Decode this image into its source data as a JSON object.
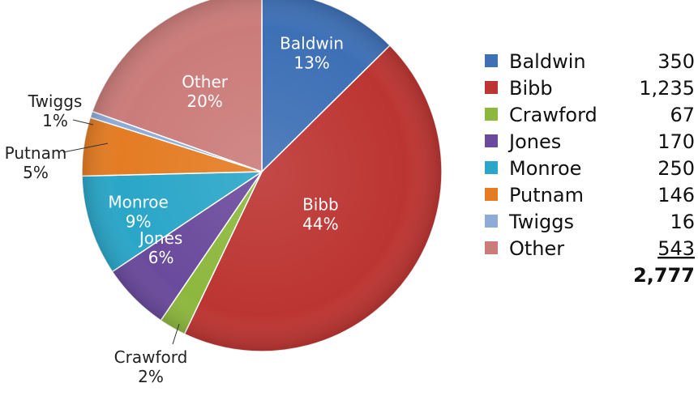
{
  "chart_data": {
    "type": "pie",
    "slices": [
      {
        "name": "Baldwin",
        "value": 350,
        "pct_label": "13%",
        "color": "#3E70B6"
      },
      {
        "name": "Bibb",
        "value": 1235,
        "pct_label": "44%",
        "color": "#BC3532"
      },
      {
        "name": "Crawford",
        "value": 67,
        "pct_label": "2%",
        "color": "#8DB83E"
      },
      {
        "name": "Jones",
        "value": 170,
        "pct_label": "6%",
        "color": "#6A4A9C"
      },
      {
        "name": "Monroe",
        "value": 250,
        "pct_label": "9%",
        "color": "#2AA6C8"
      },
      {
        "name": "Putnam",
        "value": 146,
        "pct_label": "5%",
        "color": "#E47C23"
      },
      {
        "name": "Twiggs",
        "value": 16,
        "pct_label": "1%",
        "color": "#8EABD8"
      },
      {
        "name": "Other",
        "value": 543,
        "pct_label": "20%",
        "color": "#CB7C7A"
      }
    ],
    "legend": {
      "values_text": [
        "350",
        "1,235",
        "67",
        "170",
        "250",
        "146",
        "16",
        "543"
      ],
      "total_text": "2,777",
      "underline_last": true
    }
  }
}
